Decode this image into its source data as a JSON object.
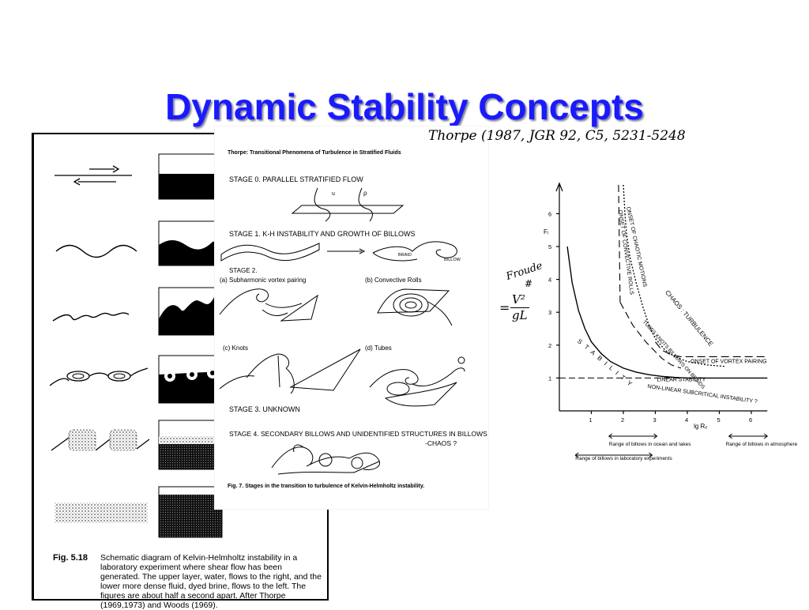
{
  "slide": {
    "title": "Dynamic Stability Concepts"
  },
  "fig518": {
    "label": "Fig. 5.18",
    "caption": "Schematic diagram of Kelvin-Helmholtz instability in a laboratory experiment where shear flow has been generated.  The upper layer, water, flows to the right, and the lower more dense fluid, dyed brine, flows to the left.  The figures are about half a second apart.  After Thorpe (1969,1973) and Woods (1969)."
  },
  "thorpe": {
    "header": "Thorpe: Transitional Phenomena of Turbulence in Stratified Fluids",
    "handwritten_ref": "Thorpe (1987, JGR 92, C5,  5231-5248",
    "stage0": "STAGE 0.  PARALLEL  STRATIFIED  FLOW",
    "stage0_u": "u",
    "stage0_rho": "ρ",
    "stage1": "STAGE 1.  K-H   INSTABILITY AND  GROWTH OF BILLOWS",
    "braid": "BRAID",
    "billow": "BILLOW",
    "stage2": "STAGE 2.",
    "stage2a": "(a) Subharmonic vortex pairing",
    "stage2b": "(b)   Convective  Rolls",
    "stage2c": "(c) Knots",
    "stage2d": "(d)   Tubes",
    "stage3": "STAGE 3.    UNKNOWN",
    "stage4": "STAGE 4.   SECONDARY  BILLOWS  AND  UNIDENTIFIED  STRUCTURES  IN  BILLOWS",
    "stage4b": "-CHAOS ?",
    "fig_caption": "Fig. 7.  Stages in the transition to turbulence of Kelvin-Helmholtz instability."
  },
  "froude_note": {
    "line1": "Froude",
    "line2": "#",
    "eq_lhs": "=",
    "eq_num": "V²",
    "eq_den": "gL"
  },
  "regime_chart": {
    "ylabel": "Fᵢ",
    "xlabel": "lg Rₑ",
    "y_ticks": [
      "1",
      "2",
      "3",
      "4",
      "5",
      "6"
    ],
    "x_ticks": [
      "1",
      "2",
      "3",
      "4",
      "5",
      "6"
    ],
    "labels": {
      "chaos": "CHAOS : TURBULENCE",
      "onset_chaotic": "ONSET OF CHAOTIC MOTIONS",
      "onset_convective": "ONSET OF CONVECTIVE ROLLS",
      "tubes": "TUBES KNOTS BILLOWS ON BRAIDS",
      "vortex_pairing": "ONSET  OF  VORTEX  PAIRING",
      "stability": "STABILITY",
      "linear_stability": "LINEAR  STABILITY",
      "nonlinear": "NON-LINEAR  SUBCRITICAL  INSTABILITY ?"
    },
    "ranges": {
      "ocean": "Range of billows in ocean and lakes",
      "lab": "Range of billows in laboratory experiments",
      "atmos": "Range of billows in atmosphere"
    }
  },
  "chart_data": {
    "type": "line",
    "xlabel": "lg Rₑ",
    "ylabel": "Fᵢ",
    "xlim": [
      0,
      6.5
    ],
    "ylim": [
      0,
      6.5
    ],
    "series": [
      {
        "name": "LINEAR STABILITY",
        "x": [
          0.25,
          0.4,
          0.6,
          0.8,
          1.0,
          1.3,
          1.6,
          2.0,
          2.4,
          2.8,
          3.2,
          3.6,
          4.0,
          6.5
        ],
        "y": [
          5.0,
          3.9,
          3.05,
          2.5,
          2.1,
          1.75,
          1.5,
          1.3,
          1.18,
          1.1,
          1.05,
          1.02,
          1.0,
          1.0
        ]
      },
      {
        "name": "ONSET OF CONVECTIVE ROLLS",
        "x": [
          1.9,
          2.3,
          2.7,
          3.0,
          3.2,
          3.5,
          3.8
        ],
        "y": [
          3.3,
          2.6,
          2.1,
          1.8,
          1.6,
          1.4,
          1.3
        ]
      },
      {
        "name": "ONSET OF CHAOTIC MOTIONS",
        "x": [
          2.05,
          2.1,
          2.2,
          2.4,
          2.6,
          2.8,
          3.0,
          3.3,
          3.6,
          4.0,
          4.6,
          5.2
        ],
        "y": [
          6.0,
          5.4,
          4.7,
          3.9,
          3.2,
          2.6,
          2.2,
          1.85,
          1.65,
          1.5,
          1.4,
          1.35
        ]
      },
      {
        "name": "ONSET OF VORTEX PAIRING",
        "x": [
          3.0,
          3.2,
          3.5,
          3.8,
          6.5
        ],
        "y": [
          2.1,
          1.85,
          1.7,
          1.65,
          1.65
        ]
      }
    ]
  }
}
